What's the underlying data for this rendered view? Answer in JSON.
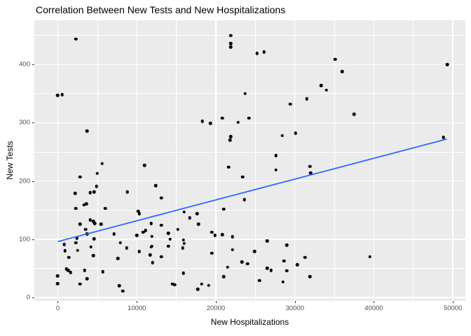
{
  "chart_data": {
    "type": "scatter",
    "title": "Correlation Between New Tests and New Hospitalizations",
    "xlabel": "New Hospitalizations",
    "ylabel": "New Tests",
    "x_range": [
      -2970,
      51580
    ],
    "y_range": [
      -6,
      476
    ],
    "x_major_ticks": [
      0,
      10000,
      20000,
      30000,
      40000,
      50000
    ],
    "x_minor_ticks": [
      5000,
      15000,
      25000,
      35000,
      45000
    ],
    "y_major_ticks": [
      0,
      100,
      200,
      300,
      400
    ],
    "y_minor_ticks": [
      50,
      150,
      250,
      350,
      450
    ],
    "x_tick_labels": [
      "0",
      "10000",
      "20000",
      "30000",
      "40000",
      "50000"
    ],
    "y_tick_labels": [
      "0",
      "100",
      "200",
      "300",
      "400"
    ],
    "grid": true,
    "legend": "none",
    "colors": {
      "panel_bg": "#EBEBEB",
      "gridline": "#FFFFFF",
      "point": "#000000",
      "trend_line": "#3366FF",
      "tick_label": "#4D4D4D",
      "title_text": "#000000"
    },
    "trend_line": {
      "type": "linear",
      "x1": 0,
      "y1": 96,
      "x2": 49200,
      "y2": 272
    },
    "points": [
      [
        2300,
        444
      ],
      [
        0,
        347
      ],
      [
        560,
        348
      ],
      [
        3700,
        286
      ],
      [
        5600,
        230
      ],
      [
        21900,
        450
      ],
      [
        21900,
        436
      ],
      [
        21900,
        430
      ],
      [
        25200,
        419
      ],
      [
        26100,
        422
      ],
      [
        33300,
        364
      ],
      [
        34000,
        356
      ],
      [
        23700,
        350
      ],
      [
        31500,
        341
      ],
      [
        29400,
        332
      ],
      [
        18300,
        303
      ],
      [
        19300,
        299
      ],
      [
        20800,
        308
      ],
      [
        22800,
        301
      ],
      [
        24200,
        308
      ],
      [
        21900,
        276
      ],
      [
        21800,
        270
      ],
      [
        28400,
        278
      ],
      [
        30100,
        282
      ],
      [
        27600,
        244
      ],
      [
        35100,
        409
      ],
      [
        36000,
        388
      ],
      [
        49300,
        400
      ],
      [
        37500,
        315
      ],
      [
        48800,
        275
      ],
      [
        11000,
        227
      ],
      [
        2800,
        207
      ],
      [
        5000,
        213
      ],
      [
        4900,
        191
      ],
      [
        2200,
        179
      ],
      [
        4100,
        180
      ],
      [
        4600,
        181
      ],
      [
        8800,
        181
      ],
      [
        12400,
        192
      ],
      [
        13100,
        171
      ],
      [
        2300,
        153
      ],
      [
        3300,
        159
      ],
      [
        3600,
        161
      ],
      [
        6000,
        153
      ],
      [
        10200,
        148
      ],
      [
        10300,
        144
      ],
      [
        4100,
        133
      ],
      [
        4500,
        131
      ],
      [
        4700,
        127
      ],
      [
        5500,
        126
      ],
      [
        2800,
        126
      ],
      [
        3500,
        117
      ],
      [
        3700,
        109
      ],
      [
        4600,
        101
      ],
      [
        2400,
        102
      ],
      [
        2300,
        94
      ],
      [
        800,
        91
      ],
      [
        900,
        80
      ],
      [
        2500,
        81
      ],
      [
        4200,
        87
      ],
      [
        4500,
        72
      ],
      [
        1400,
        69
      ],
      [
        7100,
        109
      ],
      [
        7900,
        94
      ],
      [
        8700,
        85
      ],
      [
        7600,
        67
      ],
      [
        10300,
        79
      ],
      [
        10000,
        107
      ],
      [
        10800,
        112
      ],
      [
        11100,
        115
      ],
      [
        11800,
        127
      ],
      [
        13100,
        124
      ],
      [
        11900,
        105
      ],
      [
        11800,
        87
      ],
      [
        11900,
        88
      ],
      [
        11700,
        73
      ],
      [
        12000,
        60
      ],
      [
        13100,
        70
      ],
      [
        14000,
        110
      ],
      [
        14200,
        100
      ],
      [
        14000,
        88
      ],
      [
        1100,
        49
      ],
      [
        1300,
        47
      ],
      [
        1600,
        43
      ],
      [
        3400,
        47
      ],
      [
        0,
        37
      ],
      [
        0,
        24
      ],
      [
        3700,
        32
      ],
      [
        2800,
        23
      ],
      [
        5700,
        44
      ],
      [
        7800,
        20
      ],
      [
        8200,
        11
      ],
      [
        14500,
        23
      ],
      [
        14800,
        22
      ],
      [
        15200,
        117
      ],
      [
        21600,
        224
      ],
      [
        23400,
        207
      ],
      [
        27600,
        219
      ],
      [
        31900,
        225
      ],
      [
        32000,
        214
      ],
      [
        23600,
        168
      ],
      [
        21000,
        152
      ],
      [
        16000,
        147
      ],
      [
        16700,
        137
      ],
      [
        17600,
        144
      ],
      [
        17800,
        126
      ],
      [
        19500,
        112
      ],
      [
        19900,
        107
      ],
      [
        20800,
        108
      ],
      [
        22100,
        104
      ],
      [
        15900,
        99
      ],
      [
        16000,
        93
      ],
      [
        15800,
        85
      ],
      [
        26500,
        97
      ],
      [
        29000,
        90
      ],
      [
        19500,
        76
      ],
      [
        22100,
        82
      ],
      [
        24900,
        79
      ],
      [
        23300,
        61
      ],
      [
        24000,
        58
      ],
      [
        21500,
        52
      ],
      [
        28600,
        63
      ],
      [
        30300,
        56
      ],
      [
        31300,
        69
      ],
      [
        26500,
        50
      ],
      [
        27000,
        47
      ],
      [
        29000,
        46
      ],
      [
        21000,
        36
      ],
      [
        15900,
        42
      ],
      [
        25500,
        29
      ],
      [
        28500,
        27
      ],
      [
        31900,
        36
      ],
      [
        18200,
        23
      ],
      [
        19100,
        21
      ],
      [
        17700,
        14
      ],
      [
        39500,
        70
      ]
    ]
  }
}
